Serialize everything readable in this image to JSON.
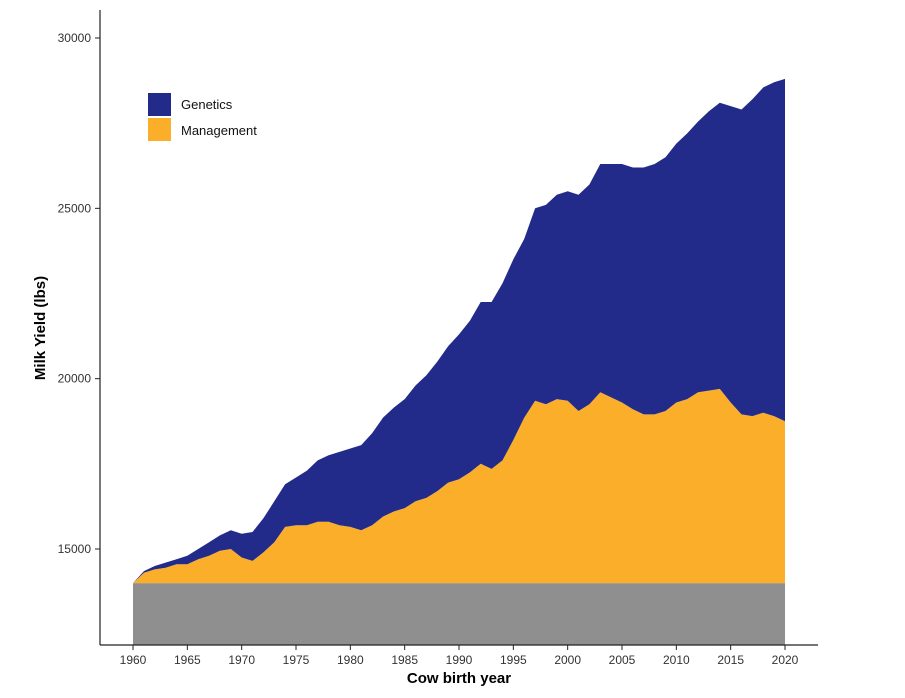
{
  "chart_data": {
    "type": "area",
    "xlabel": "Cow birth year",
    "ylabel": "Milk Yield (lbs)",
    "xlim": [
      1957,
      2023
    ],
    "ylim": [
      12800,
      30800
    ],
    "x_ticks": [
      "1960",
      "1965",
      "1970",
      "1975",
      "1980",
      "1985",
      "1990",
      "1995",
      "2000",
      "2005",
      "2010",
      "2015",
      "2020"
    ],
    "y_ticks": [
      "15000",
      "20000",
      "25000",
      "30000"
    ],
    "baseline": 14000,
    "grid": false,
    "legend_position": "top-left",
    "x": [
      1960,
      1961,
      1962,
      1963,
      1964,
      1965,
      1966,
      1967,
      1968,
      1969,
      1970,
      1971,
      1972,
      1973,
      1974,
      1975,
      1976,
      1977,
      1978,
      1979,
      1980,
      1981,
      1982,
      1983,
      1984,
      1985,
      1986,
      1987,
      1988,
      1989,
      1990,
      1991,
      1992,
      1993,
      1994,
      1995,
      1996,
      1997,
      1998,
      1999,
      2000,
      2001,
      2002,
      2003,
      2004,
      2005,
      2006,
      2007,
      2008,
      2009,
      2010,
      2011,
      2012,
      2013,
      2014,
      2015,
      2016,
      2017,
      2018,
      2019,
      2020
    ],
    "series": [
      {
        "name": "Management",
        "color": "#FBAE2A",
        "values": [
          14000,
          14300,
          14400,
          14450,
          14550,
          14550,
          14700,
          14800,
          14950,
          15000,
          14750,
          14650,
          14900,
          15200,
          15650,
          15700,
          15700,
          15800,
          15800,
          15700,
          15650,
          15550,
          15700,
          15950,
          16100,
          16200,
          16400,
          16500,
          16700,
          16950,
          17050,
          17250,
          17500,
          17350,
          17600,
          18200,
          18850,
          19350,
          19250,
          19400,
          19350,
          19050,
          19250,
          19600,
          19450,
          19300,
          19100,
          18950,
          18950,
          19050,
          19300,
          19400,
          19600,
          19650,
          19700,
          19300,
          18950,
          18900,
          19000,
          18900,
          18750
        ]
      },
      {
        "name": "Genetics",
        "color": "#232B8A",
        "values": [
          14000,
          14350,
          14500,
          14600,
          14700,
          14800,
          15000,
          15200,
          15400,
          15550,
          15450,
          15500,
          15900,
          16400,
          16900,
          17100,
          17300,
          17600,
          17750,
          17850,
          17950,
          18050,
          18400,
          18850,
          19150,
          19400,
          19800,
          20100,
          20500,
          20950,
          21300,
          21700,
          22250,
          22250,
          22800,
          23500,
          24100,
          25000,
          25100,
          25400,
          25500,
          25400,
          25700,
          26300,
          26300,
          26300,
          26200,
          26200,
          26300,
          26500,
          26900,
          27200,
          27550,
          27850,
          28100,
          28000,
          27900,
          28200,
          28550,
          28700,
          28800
        ]
      }
    ],
    "baseline_color": "#8F8F8F"
  }
}
